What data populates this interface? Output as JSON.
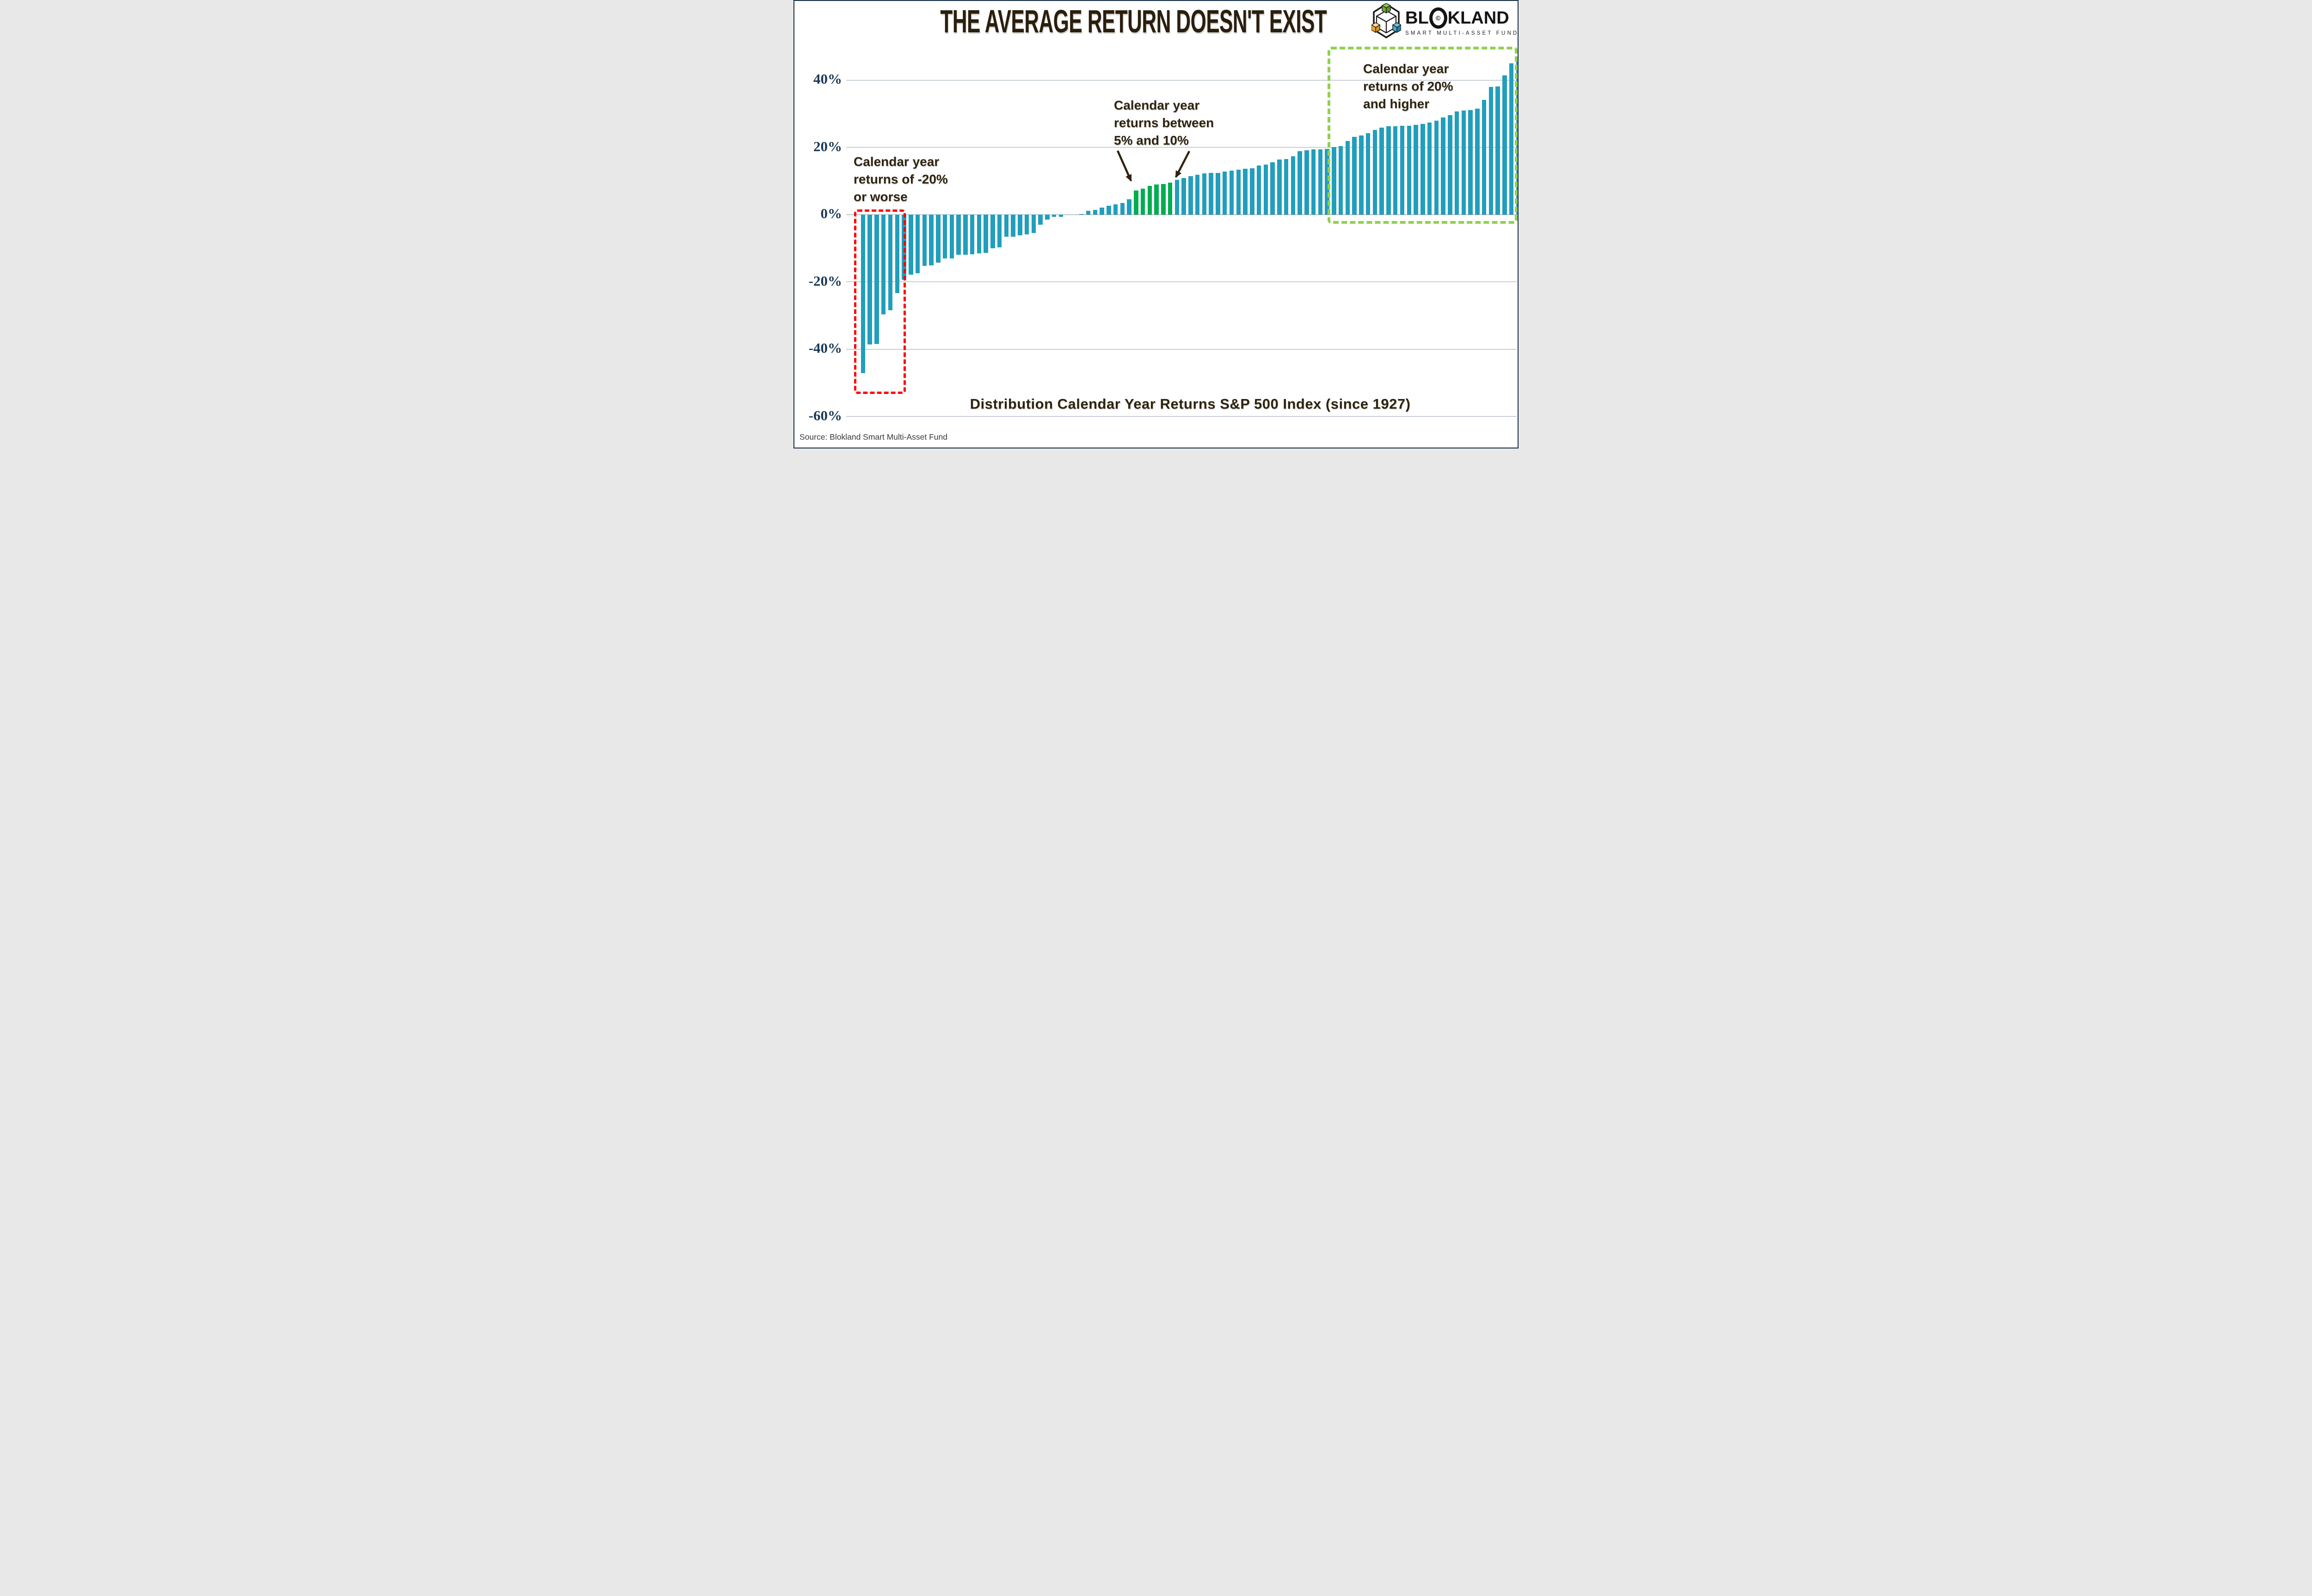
{
  "page_title": "THE AVERAGE RETURN DOESN'T EXIST",
  "logo": {
    "brand_prefix": "BL",
    "brand_o_symbol": "©",
    "brand_suffix": "KLAND",
    "subtitle": "SMART MULTI-ASSET FUND",
    "cube_colors": {
      "green_light": "#8CC63F",
      "green_dark": "#5E9732",
      "amber_light": "#F7DFA0",
      "amber": "#EBA92B",
      "amber_dark": "#D99414",
      "blue_light": "#6CC5DE",
      "blue_dark": "#2A7E9E",
      "outline": "#1A1A1A"
    }
  },
  "annotations": {
    "left": "Calendar year\nreturns of -20%\nor worse",
    "middle": "Calendar year\nreturns between\n5% and 10%",
    "right": "Calendar year\nreturns of 20%\nand higher"
  },
  "caption": "Distribution Calendar Year Returns S&P 500 Index (since 1927)",
  "source": "Source: Blokland Smart Multi-Asset Fund",
  "chart_data": {
    "type": "bar",
    "title": "Distribution Calendar Year Returns S&P 500 Index (since 1927)",
    "xlabel": "",
    "ylabel": "",
    "description": "S&P 500 Index calendar year returns since 1927, one bar per year, sorted ascending",
    "y_axis": {
      "ticks": [
        40,
        20,
        0,
        -20,
        -40,
        -60
      ],
      "tick_labels": [
        "40%",
        "20%",
        "0%",
        "-20%",
        "-40%",
        "-60%"
      ],
      "ylim": [
        -64,
        48
      ],
      "grid": true
    },
    "values": [
      -47.1,
      -38.6,
      -38.5,
      -29.7,
      -28.5,
      -23.4,
      -19.4,
      -17.9,
      -17.4,
      -15.3,
      -15.1,
      -14.3,
      -13.1,
      -13.0,
      -11.9,
      -11.9,
      -11.8,
      -11.5,
      -11.4,
      -10.1,
      -9.7,
      -6.6,
      -6.6,
      -6.2,
      -5.9,
      -5.5,
      -3.0,
      -1.5,
      -0.7,
      -0.7,
      0.0,
      0.0,
      0.1,
      1.1,
      1.4,
      2.0,
      2.6,
      3.0,
      3.5,
      4.5,
      7.1,
      7.7,
      8.5,
      9.0,
      9.1,
      9.5,
      10.3,
      10.8,
      11.4,
      11.8,
      12.3,
      12.4,
      12.4,
      12.8,
      13.0,
      13.4,
      13.6,
      13.8,
      14.6,
      14.8,
      15.6,
      16.3,
      16.5,
      17.3,
      18.9,
      19.1,
      19.4,
      19.4,
      19.5,
      20.1,
      20.3,
      21.8,
      23.1,
      23.5,
      24.2,
      25.2,
      25.8,
      26.3,
      26.3,
      26.4,
      26.4,
      26.7,
      26.9,
      27.3,
      27.9,
      28.9,
      29.6,
      30.7,
      30.9,
      31.0,
      31.5,
      34.1,
      37.9,
      38.1,
      41.4,
      45.0,
      46.6
    ],
    "bar_color": "#229EBD",
    "highlight": {
      "green_range": [
        5,
        10
      ],
      "green_color": "#00AD51"
    },
    "highlight_boxes": [
      {
        "name": "red-highlight-box",
        "color": "#FF0000",
        "meaning": "Calendar year returns of -20% or worse"
      },
      {
        "name": "green-highlight-box",
        "color": "#92D050",
        "meaning": "Calendar year returns of 20% and higher"
      }
    ],
    "legend": null
  }
}
